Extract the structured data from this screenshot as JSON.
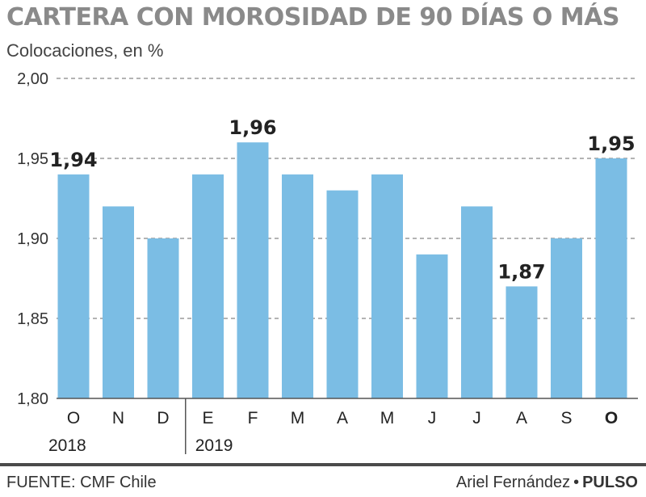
{
  "title": "CARTERA CON MOROSIDAD DE 90 DÍAS O MÁS",
  "subtitle": "Colocaciones, en %",
  "footer": {
    "source": "FUENTE: CMF Chile",
    "author": "Ariel Fernández",
    "separator": "•",
    "publication": "PULSO"
  },
  "colors": {
    "bar": "#7bbde4",
    "title": "#8a8a8a",
    "grid": "#9a9a9a",
    "axis": "#555555"
  },
  "chart_data": {
    "type": "bar",
    "categories": [
      "O",
      "N",
      "D",
      "E",
      "F",
      "M",
      "A",
      "M",
      "J",
      "J",
      "A",
      "S",
      "O"
    ],
    "values": [
      1.94,
      1.92,
      1.9,
      1.94,
      1.96,
      1.94,
      1.93,
      1.94,
      1.89,
      1.92,
      1.87,
      1.9,
      1.95
    ],
    "ylim": [
      1.8,
      2.0
    ],
    "yticks": [
      "1,80",
      "1,85",
      "1,90",
      "1,95",
      "2,00"
    ],
    "ytick_values": [
      1.8,
      1.85,
      1.9,
      1.95,
      2.0
    ],
    "bold_categories": [
      12
    ],
    "data_labels": [
      {
        "index": 0,
        "text": "1,94"
      },
      {
        "index": 4,
        "text": "1,96"
      },
      {
        "index": 10,
        "text": "1,87"
      },
      {
        "index": 12,
        "text": "1,95"
      }
    ],
    "year_groups": [
      {
        "label": "2018",
        "start": 0
      },
      {
        "label": "2019",
        "start": 3
      }
    ],
    "grid": true
  }
}
